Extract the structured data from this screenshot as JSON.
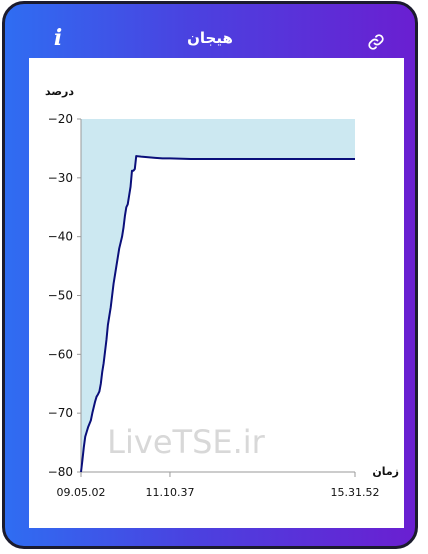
{
  "header": {
    "title": "هیجان",
    "info_icon": "info-icon",
    "link_icon": "link-icon"
  },
  "watermark": "LiveTSE.ir",
  "colors": {
    "gradient_start": "#2f6df2",
    "gradient_end": "#6a1fd1",
    "area_fill": "#cce8f1",
    "line": "#0a0f7a"
  },
  "chart_data": {
    "type": "line",
    "title": "",
    "ylabel": "درصد",
    "xlabel": "زمان",
    "ylim": [
      -80,
      -20
    ],
    "yticks": [
      -20,
      -30,
      -40,
      -50,
      -60,
      -70,
      -80
    ],
    "ytick_labels": [
      "−20",
      "−30",
      "−40",
      "−50",
      "−60",
      "−70",
      "−80"
    ],
    "xticks": [
      "09.05.02",
      "11.10.37",
      "15.31.52"
    ],
    "area_fill": "above-line",
    "grid": false,
    "series": [
      {
        "name": "",
        "points": [
          [
            "09.05.02",
            -80.0
          ],
          [
            "09.07.00",
            -78.0
          ],
          [
            "09.09.00",
            -75.8
          ],
          [
            "09.11.00",
            -74.0
          ],
          [
            "09.13.00",
            -73.2
          ],
          [
            "09.15.00",
            -72.4
          ],
          [
            "09.17.00",
            -71.8
          ],
          [
            "09.19.00",
            -71.2
          ],
          [
            "09.21.00",
            -70.0
          ],
          [
            "09.23.00",
            -69.0
          ],
          [
            "09.25.00",
            -68.0
          ],
          [
            "09.27.00",
            -67.2
          ],
          [
            "09.29.00",
            -66.8
          ],
          [
            "09.31.00",
            -66.3
          ],
          [
            "09.33.00",
            -65.0
          ],
          [
            "09.35.00",
            -63.0
          ],
          [
            "09.37.00",
            -61.5
          ],
          [
            "09.39.00",
            -59.5
          ],
          [
            "09.41.00",
            -57.5
          ],
          [
            "09.43.00",
            -55.0
          ],
          [
            "09.45.00",
            -53.5
          ],
          [
            "09.47.00",
            -52.0
          ],
          [
            "09.49.00",
            -50.0
          ],
          [
            "09.51.00",
            -48.0
          ],
          [
            "09.53.00",
            -46.5
          ],
          [
            "09.55.00",
            -45.0
          ],
          [
            "09.57.00",
            -43.5
          ],
          [
            "09.59.00",
            -42.0
          ],
          [
            "10.01.00",
            -41.0
          ],
          [
            "10.03.00",
            -40.0
          ],
          [
            "10.05.00",
            -38.5
          ],
          [
            "10.07.00",
            -36.5
          ],
          [
            "10.09.00",
            -35.0
          ],
          [
            "10.11.00",
            -34.5
          ],
          [
            "10.13.00",
            -33.0
          ],
          [
            "10.15.00",
            -31.5
          ],
          [
            "10.17.00",
            -28.8
          ],
          [
            "10.19.00",
            -28.8
          ],
          [
            "10.21.00",
            -28.5
          ],
          [
            "10.23.00",
            -26.3
          ],
          [
            "10.30.00",
            -26.4
          ],
          [
            "10.40.00",
            -26.5
          ],
          [
            "10.50.00",
            -26.6
          ],
          [
            "11.00.00",
            -26.7
          ],
          [
            "11.10.37",
            -26.7
          ],
          [
            "11.40.00",
            -26.8
          ],
          [
            "12.30.00",
            -26.8
          ],
          [
            "13.30.00",
            -26.8
          ],
          [
            "14.30.00",
            -26.8
          ],
          [
            "15.31.52",
            -26.8
          ]
        ]
      }
    ]
  }
}
